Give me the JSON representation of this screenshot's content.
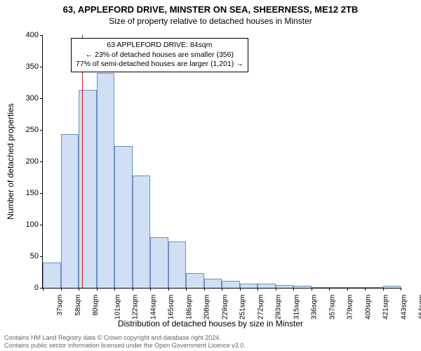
{
  "title": "63, APPLEFORD DRIVE, MINSTER ON SEA, SHEERNESS, ME12 2TB",
  "subtitle": "Size of property relative to detached houses in Minster",
  "ylabel": "Number of detached properties",
  "xlabel": "Distribution of detached houses by size in Minster",
  "chart": {
    "type": "histogram",
    "ylim": [
      0,
      400
    ],
    "ytick_step": 50,
    "bar_fill": "#cfe0f4",
    "bar_stroke": "#6d8fbf",
    "marker_color": "#d11a1a",
    "bin_width_sqm": 21.35,
    "xtick_labels": [
      "37sqm",
      "58sqm",
      "80sqm",
      "101sqm",
      "122sqm",
      "144sqm",
      "165sqm",
      "186sqm",
      "208sqm",
      "229sqm",
      "251sqm",
      "272sqm",
      "293sqm",
      "315sqm",
      "336sqm",
      "357sqm",
      "379sqm",
      "400sqm",
      "421sqm",
      "443sqm",
      "464sqm"
    ],
    "values": [
      40,
      243,
      313,
      340,
      225,
      178,
      80,
      73,
      23,
      14,
      11,
      7,
      7,
      4,
      3,
      0,
      0,
      0,
      0,
      3
    ],
    "marker_sqm": 84
  },
  "annotation": {
    "line1": "63 APPLEFORD DRIVE: 84sqm",
    "line2": "← 23% of detached houses are smaller (356)",
    "line3": "77% of semi-detached houses are larger (1,201) →"
  },
  "footer": {
    "line1": "Contains HM Land Registry data © Crown copyright and database right 2024.",
    "line2": "Contains public sector information licensed under the Open Government Licence v3.0."
  }
}
